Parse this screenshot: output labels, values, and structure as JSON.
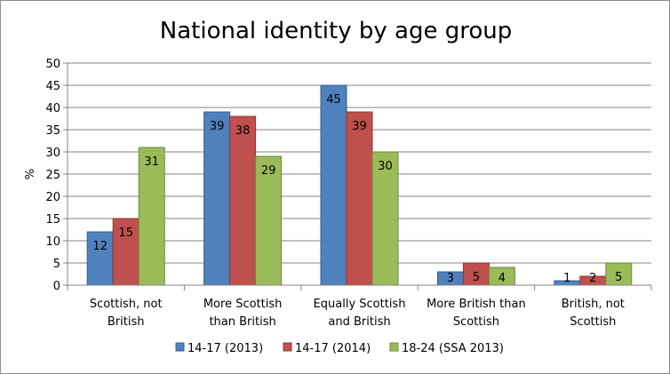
{
  "chart_data": {
    "type": "bar",
    "title": "National identity by age group",
    "ylabel": "%",
    "xlabel": "",
    "ylim": [
      0,
      50
    ],
    "yticks": [
      0,
      5,
      10,
      15,
      20,
      25,
      30,
      35,
      40,
      45,
      50
    ],
    "grid": true,
    "legend_position": "bottom",
    "categories": [
      [
        "Scottish, not",
        "British"
      ],
      [
        "More Scottish",
        "than British"
      ],
      [
        "Equally Scottish",
        "and British"
      ],
      [
        "More British than",
        "Scottish"
      ],
      [
        "British, not",
        "Scottish"
      ]
    ],
    "series": [
      {
        "name": "14-17 (2013)",
        "color": "#4f81bd",
        "stroke": "#385d8a",
        "values": [
          12,
          39,
          45,
          3,
          1
        ]
      },
      {
        "name": "14-17 (2014)",
        "color": "#c0504d",
        "stroke": "#8c3836",
        "values": [
          15,
          38,
          39,
          5,
          2
        ]
      },
      {
        "name": "18-24 (SSA 2013)",
        "color": "#9bbb59",
        "stroke": "#71893f",
        "values": [
          31,
          29,
          30,
          4,
          5
        ]
      }
    ]
  }
}
